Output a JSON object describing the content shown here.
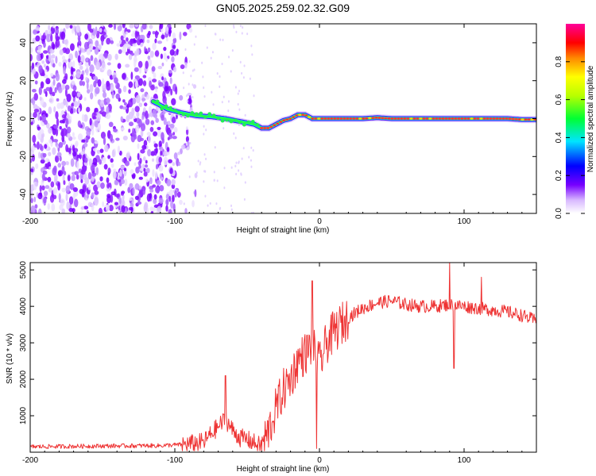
{
  "title": "GN05.2025.259.02.32.G09",
  "chart_data": [
    {
      "type": "heatmap",
      "xlabel": "Height of straight line (km)",
      "ylabel": "Frequency (Hz)",
      "xlim": [
        -200,
        150
      ],
      "ylim": [
        -50,
        50
      ],
      "xticks": [
        -200,
        -100,
        0,
        100
      ],
      "yticks": [
        -40,
        -20,
        0,
        20,
        40
      ],
      "signal_track": {
        "x": [
          -115,
          -105,
          -95,
          -85,
          -75,
          -65,
          -55,
          -45,
          -40,
          -35,
          -30,
          -25,
          -20,
          -15,
          -10,
          -5,
          0,
          10,
          20,
          30,
          40,
          50,
          60,
          70,
          80,
          90,
          100,
          110,
          120,
          130,
          140,
          150
        ],
        "freq": [
          9,
          5,
          3,
          1.5,
          1,
          0,
          -1.5,
          -3,
          -5,
          -5,
          -3,
          -1,
          0,
          2,
          2,
          0,
          0,
          0,
          0,
          0,
          0.5,
          0,
          0,
          0,
          0,
          0,
          0,
          0,
          0,
          0,
          -0.5,
          -0.5
        ]
      },
      "noise_extent_x": [
        -200,
        -95
      ],
      "colorbar": {
        "label": "Normalized spectral amplitude",
        "ticks": [
          "0.0",
          "0.2",
          "0.4",
          "0.6",
          "0.8"
        ],
        "range": [
          0,
          1
        ]
      }
    },
    {
      "type": "line",
      "xlabel": "Height of straight line (km)",
      "ylabel": "SNR (10 * v/v)",
      "xlim": [
        -200,
        150
      ],
      "ylim": [
        0,
        5200
      ],
      "xticks": [
        -200,
        -100,
        0,
        100
      ],
      "yticks": [
        1000,
        2000,
        3000,
        4000,
        5000
      ],
      "color": "#ee3333",
      "series": [
        {
          "name": "SNR",
          "x": [
            -200,
            -150,
            -110,
            -100,
            -90,
            -80,
            -75,
            -70,
            -65,
            -60,
            -55,
            -50,
            -45,
            -40,
            -35,
            -30,
            -25,
            -20,
            -15,
            -10,
            -5,
            0,
            5,
            10,
            15,
            20,
            30,
            40,
            50,
            60,
            70,
            80,
            90,
            100,
            110,
            120,
            130,
            140,
            150
          ],
          "values": [
            150,
            170,
            180,
            200,
            220,
            280,
            500,
            700,
            900,
            600,
            400,
            350,
            250,
            150,
            600,
            1200,
            1700,
            2000,
            2500,
            2700,
            2900,
            2400,
            3000,
            3300,
            3500,
            3700,
            3950,
            4100,
            4150,
            4050,
            4000,
            4000,
            4050,
            4000,
            3950,
            3900,
            3850,
            3750,
            3600
          ]
        }
      ],
      "spikes": [
        {
          "x": -65,
          "value": 2100
        },
        {
          "x": -5,
          "value": 4700
        },
        {
          "x": -2,
          "value": 100
        },
        {
          "x": 90,
          "value": 5200
        },
        {
          "x": 93,
          "value": 2300
        },
        {
          "x": 112,
          "value": 4800
        }
      ]
    }
  ]
}
